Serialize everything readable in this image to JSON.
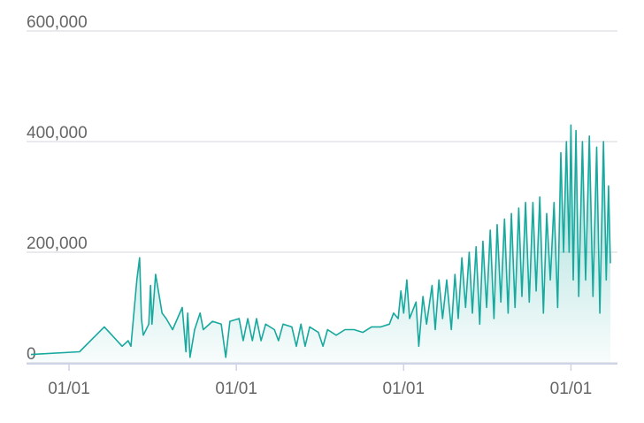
{
  "chart_data": {
    "type": "area",
    "x": [
      -83,
      23,
      77,
      116,
      129,
      135,
      148,
      154,
      158,
      162,
      174,
      178,
      181,
      189,
      197,
      203,
      212,
      226,
      247,
      255,
      259,
      264,
      274,
      286,
      293,
      313,
      332,
      342,
      351,
      371,
      380,
      390,
      400,
      409,
      419,
      429,
      448,
      457,
      467,
      486,
      496,
      506,
      515,
      525,
      544,
      554,
      564,
      583,
      602,
      622,
      641,
      660,
      680,
      699,
      708,
      718,
      724,
      730,
      737,
      743,
      757,
      763,
      772,
      780,
      792,
      799,
      807,
      815,
      824,
      834,
      842,
      849,
      857,
      865,
      873,
      880,
      888,
      896,
      903,
      911,
      919,
      927,
      934,
      942,
      950,
      958,
      965,
      973,
      981,
      988,
      996,
      1004,
      1012,
      1019,
      1027,
      1035,
      1042,
      1050,
      1058,
      1066,
      1073,
      1079,
      1085,
      1091,
      1095,
      1100,
      1106,
      1112,
      1120,
      1127,
      1135,
      1143,
      1151,
      1158,
      1166,
      1172,
      1177,
      1181
    ],
    "series": [
      {
        "color": "#17a89e",
        "values": [
          15000,
          20000,
          65000,
          30000,
          40000,
          30000,
          150000,
          190000,
          80000,
          50000,
          70000,
          140000,
          70000,
          160000,
          120000,
          90000,
          80000,
          60000,
          100000,
          20000,
          90000,
          10000,
          60000,
          90000,
          60000,
          75000,
          70000,
          10000,
          75000,
          80000,
          40000,
          80000,
          40000,
          80000,
          40000,
          70000,
          60000,
          40000,
          70000,
          65000,
          30000,
          70000,
          30000,
          65000,
          55000,
          30000,
          60000,
          50000,
          60000,
          60000,
          55000,
          65000,
          65000,
          70000,
          90000,
          80000,
          130000,
          90000,
          150000,
          80000,
          110000,
          30000,
          120000,
          70000,
          140000,
          60000,
          150000,
          80000,
          150000,
          60000,
          160000,
          80000,
          190000,
          100000,
          200000,
          90000,
          210000,
          70000,
          220000,
          100000,
          240000,
          80000,
          250000,
          110000,
          260000,
          90000,
          270000,
          100000,
          280000,
          120000,
          290000,
          110000,
          290000,
          130000,
          300000,
          90000,
          270000,
          150000,
          290000,
          100000,
          380000,
          200000,
          400000,
          200000,
          430000,
          150000,
          420000,
          120000,
          400000,
          150000,
          410000,
          120000,
          390000,
          90000,
          400000,
          150000,
          320000,
          180000
        ]
      }
    ],
    "xlim": [
      -83,
      1181
    ],
    "xticks": [
      {
        "value": 0,
        "label": "01/01"
      },
      {
        "value": 365,
        "label": "01/01"
      },
      {
        "value": 730,
        "label": "01/01"
      },
      {
        "value": 1095,
        "label": "01/01"
      }
    ],
    "ylim": [
      0,
      600000
    ],
    "yticks": [
      0,
      {
        "value": 200000,
        "label": "200,000"
      },
      {
        "value": 400000,
        "label": "400,000"
      },
      {
        "value": 600000,
        "label": "600,000"
      }
    ],
    "grid": true
  }
}
